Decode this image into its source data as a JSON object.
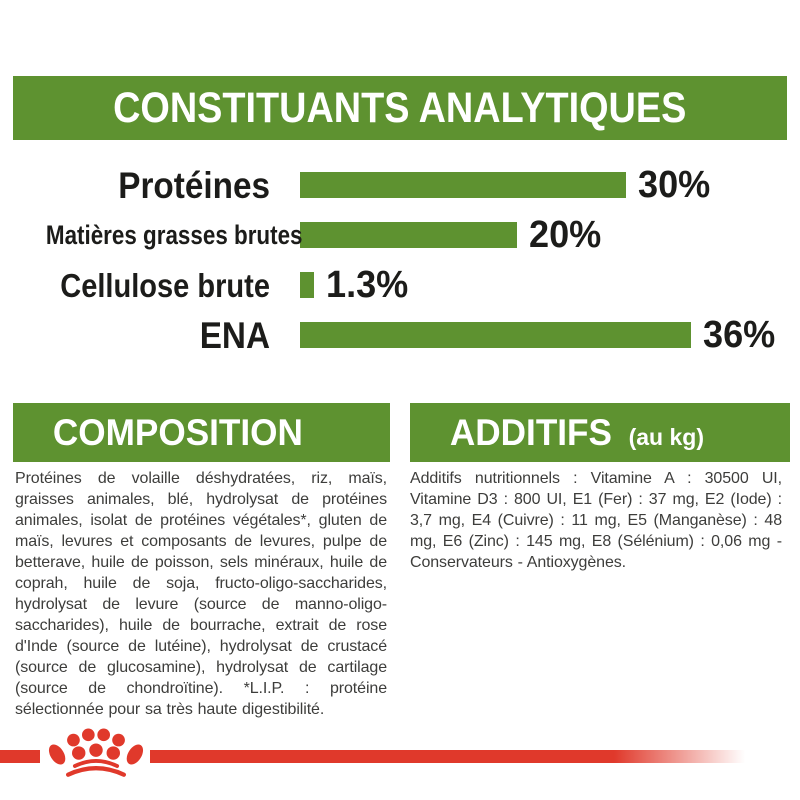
{
  "colors": {
    "green": "#5e9230",
    "red": "#e0392b",
    "heading_text": "#ffffff",
    "label_text": "#1c1c1a",
    "body_text": "#3d3d3b"
  },
  "header": {
    "title": "CONSTITUANTS ANALYTIQUES"
  },
  "chart_data": {
    "type": "bar",
    "orientation": "horizontal",
    "title": "CONSTITUANTS ANALYTIQUES",
    "categories": [
      "Protéines",
      "Matières grasses brutes",
      "Cellulose brute",
      "ENA"
    ],
    "values": [
      30,
      20,
      1.3,
      36
    ],
    "value_labels": [
      "30%",
      "20%",
      "1.3%",
      "36%"
    ],
    "unit": "%",
    "bar_color": "#5e9230",
    "xlim": [
      0,
      46
    ],
    "grid": false,
    "legend": false
  },
  "sections": {
    "composition": {
      "title": "COMPOSITION",
      "body": "Protéines de volaille déshydratées, riz, maïs, graisses animales, blé, hydrolysat de protéines animales, isolat de protéines végétales*, gluten de maïs, levures et composants de levures, pulpe de betterave, huile de poisson, sels minéraux, huile de coprah, huile de soja, fructo-oligo-saccharides, hydrolysat de levure (source de manno-oligo-saccharides), huile de bourrache, extrait de rose d'Inde (source de lutéine), hydrolysat de crustacé (source de glucosamine), hydrolysat de cartilage (source de chondroïtine). *L.I.P. : protéine sélectionnée pour sa très haute digestibilité."
    },
    "additifs": {
      "title": "ADDITIFS",
      "title_suffix": "(au kg)",
      "body": "Additifs nutritionnels : Vitamine A : 30500 UI, Vitamine D3 : 800 UI, E1 (Fer) : 37 mg, E2 (Iode) : 3,7 mg, E4 (Cuivre) : 11 mg, E5 (Manganèse) : 48 mg, E6 (Zinc) : 145 mg, E8 (Sélénium) : 0,06 mg - Conservateurs - Antioxygènes."
    }
  },
  "footer": {
    "logo": "royal-canin-crown"
  }
}
